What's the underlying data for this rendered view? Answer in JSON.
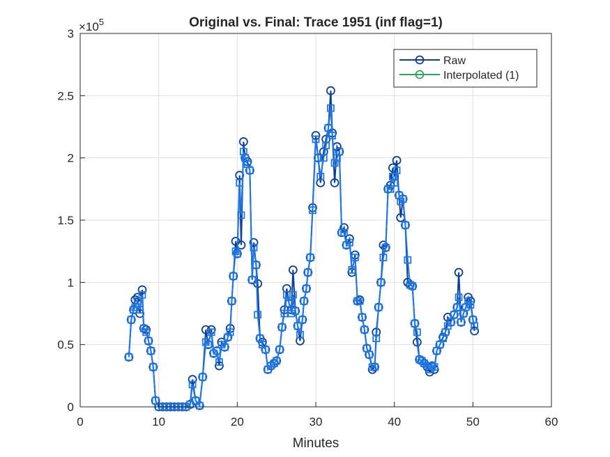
{
  "chart_data": {
    "type": "line",
    "title": "Original vs. Final: Trace 1951 (inf flag=1)",
    "x_label": "Minutes",
    "y_exponent_base": "×10",
    "y_exponent": "5",
    "xlim": [
      0,
      60
    ],
    "xticks": [
      0,
      10,
      20,
      30,
      40,
      50,
      60
    ],
    "ylim": [
      0,
      3
    ],
    "yticks": [
      0,
      0.5,
      1,
      1.5,
      2,
      2.5,
      3
    ],
    "grid": true,
    "legend": "top-right",
    "series": [
      {
        "name": "Interpolated (1)",
        "color": "#2ea55a",
        "marker": "circle",
        "x": [
          10.5,
          11,
          11.5
        ],
        "values": [
          0,
          0,
          0
        ]
      },
      {
        "name": "Raw",
        "color": "#0b3f91",
        "marker": "circle",
        "x": [
          6.2,
          6.5,
          6.8,
          7.0,
          7.3,
          7.6,
          7.9,
          8.1,
          8.4,
          8.7,
          9.0,
          9.3,
          9.6,
          10.0,
          10.5,
          11,
          11.5,
          12,
          12.5,
          13,
          13.5,
          14.0,
          14.3,
          14.7,
          15.2,
          15.6,
          16.0,
          16.3,
          16.7,
          17.0,
          17.4,
          17.7,
          18.0,
          18.4,
          18.8,
          19.1,
          19.3,
          19.5,
          19.8,
          20.0,
          20.3,
          20.5,
          20.8,
          21.0,
          21.3,
          21.6,
          21.9,
          22.1,
          22.4,
          22.6,
          22.9,
          23.2,
          23.6,
          23.9,
          24.3,
          24.7,
          25.0,
          25.4,
          25.7,
          26.0,
          26.3,
          26.6,
          26.9,
          27.1,
          27.4,
          27.7,
          28.0,
          28.3,
          28.5,
          28.8,
          29.0,
          29.3,
          29.6,
          30.0,
          30.3,
          30.6,
          31.0,
          31.3,
          31.6,
          31.9,
          32.1,
          32.4,
          32.7,
          33.0,
          33.3,
          33.6,
          33.9,
          34.3,
          34.6,
          35.0,
          35.3,
          35.6,
          35.9,
          36.2,
          36.5,
          36.8,
          37.2,
          37.5,
          37.7,
          38.0,
          38.3,
          38.6,
          38.9,
          39.2,
          39.5,
          39.8,
          40.0,
          40.3,
          40.6,
          40.8,
          41.1,
          41.4,
          41.7,
          42.0,
          42.3,
          42.6,
          42.9,
          43.2,
          43.5,
          43.8,
          44.2,
          44.5,
          44.8,
          45.1,
          45.4,
          45.8,
          46.2,
          46.5,
          46.8,
          47.2,
          47.6,
          48.0,
          48.2,
          48.5,
          48.8,
          49.1,
          49.4,
          49.7,
          50.0,
          50.2
        ],
        "values": [
          0.4,
          0.7,
          0.78,
          0.86,
          0.88,
          0.75,
          0.94,
          0.63,
          0.62,
          0.53,
          0.45,
          0.32,
          0.05,
          0,
          0,
          0,
          0,
          0,
          0,
          0,
          0,
          0.02,
          0.22,
          0.05,
          0.01,
          0.24,
          0.62,
          0.5,
          0.62,
          0.43,
          0.45,
          0.33,
          0.52,
          0.48,
          0.56,
          0.63,
          0.85,
          1.05,
          1.33,
          1.23,
          1.86,
          1.3,
          2.13,
          2.0,
          1.97,
          1.9,
          1.02,
          1.32,
          1.14,
          0.99,
          0.55,
          0.52,
          0.46,
          0.3,
          0.33,
          0.35,
          0.37,
          0.46,
          0.64,
          0.78,
          0.95,
          0.83,
          0.78,
          1.1,
          0.77,
          0.65,
          0.53,
          0.7,
          0.85,
          0.95,
          1.08,
          1.2,
          1.6,
          2.18,
          2.0,
          1.8,
          2.05,
          2.15,
          2.24,
          2.54,
          2.2,
          1.8,
          2.09,
          2.05,
          1.4,
          1.44,
          1.3,
          1.35,
          1.08,
          1.22,
          0.85,
          0.86,
          0.72,
          0.62,
          0.47,
          0.42,
          0.3,
          0.32,
          0.6,
          0.8,
          1.0,
          1.3,
          1.28,
          1.75,
          1.78,
          1.92,
          1.85,
          1.98,
          1.7,
          1.52,
          1.67,
          1.46,
          1.0,
          0.98,
          0.97,
          0.67,
          0.52,
          0.38,
          0.37,
          0.35,
          0.32,
          0.28,
          0.33,
          0.3,
          0.45,
          0.5,
          0.56,
          0.6,
          0.72,
          0.68,
          0.74,
          0.8,
          1.08,
          0.68,
          0.75,
          0.8,
          0.88,
          0.85,
          0.7,
          0.61
        ]
      },
      {
        "color": "#1f78e6",
        "marker": "square",
        "x": [
          6.2,
          6.5,
          6.8,
          7.0,
          7.3,
          7.6,
          7.9,
          8.1,
          8.4,
          8.7,
          9.0,
          9.3,
          9.6,
          10.0,
          10.5,
          11,
          11.5,
          12,
          12.5,
          13,
          13.5,
          14.0,
          14.3,
          14.7,
          15.2,
          15.6,
          16.0,
          16.3,
          16.7,
          17.0,
          17.4,
          17.7,
          18.0,
          18.4,
          18.8,
          19.1,
          19.3,
          19.5,
          19.8,
          20.0,
          20.3,
          20.5,
          20.8,
          21.0,
          21.3,
          21.6,
          21.9,
          22.1,
          22.4,
          22.6,
          22.9,
          23.2,
          23.6,
          23.9,
          24.3,
          24.7,
          25.0,
          25.4,
          25.7,
          26.0,
          26.3,
          26.6,
          26.9,
          27.1,
          27.4,
          27.7,
          28.0,
          28.3,
          28.5,
          28.8,
          29.0,
          29.3,
          29.6,
          30.0,
          30.3,
          30.6,
          31.0,
          31.3,
          31.6,
          31.9,
          32.1,
          32.4,
          32.7,
          33.0,
          33.3,
          33.6,
          33.9,
          34.3,
          34.6,
          35.0,
          35.3,
          35.6,
          35.9,
          36.2,
          36.5,
          36.8,
          37.2,
          37.5,
          37.7,
          38.0,
          38.3,
          38.6,
          38.9,
          39.2,
          39.5,
          39.8,
          40.0,
          40.3,
          40.6,
          40.8,
          41.1,
          41.4,
          41.7,
          42.0,
          42.3,
          42.6,
          42.9,
          43.2,
          43.5,
          43.8,
          44.2,
          44.5,
          44.8,
          45.1,
          45.4,
          45.8,
          46.2,
          46.5,
          46.8,
          47.2,
          47.6,
          48.0,
          48.2,
          48.5,
          48.8,
          49.1,
          49.4,
          49.7,
          50.0,
          50.2
        ],
        "values": [
          0.4,
          0.7,
          0.78,
          0.8,
          0.85,
          0.78,
          0.9,
          0.63,
          0.6,
          0.53,
          0.45,
          0.32,
          0.05,
          0,
          0,
          0,
          0,
          0,
          0,
          0,
          0,
          0.02,
          0.18,
          0.05,
          0.01,
          0.24,
          0.52,
          0.5,
          0.6,
          0.43,
          0.45,
          0.36,
          0.5,
          0.48,
          0.56,
          0.6,
          0.85,
          1.05,
          1.25,
          1.23,
          1.8,
          1.54,
          2.05,
          2.0,
          1.95,
          1.9,
          1.02,
          1.28,
          1.14,
          0.74,
          0.55,
          0.5,
          0.46,
          0.3,
          0.33,
          0.35,
          0.37,
          0.46,
          0.64,
          0.75,
          0.9,
          0.83,
          0.75,
          0.9,
          0.77,
          0.65,
          0.58,
          0.7,
          0.85,
          0.95,
          1.08,
          1.2,
          1.58,
          2.15,
          2.0,
          1.85,
          2.0,
          2.1,
          2.24,
          2.4,
          2.18,
          1.96,
          2.0,
          2.05,
          1.4,
          1.4,
          1.3,
          1.32,
          1.1,
          1.2,
          0.85,
          0.85,
          0.72,
          0.62,
          0.47,
          0.42,
          0.32,
          0.32,
          0.55,
          0.8,
          1.0,
          1.2,
          1.28,
          1.75,
          1.75,
          1.85,
          1.8,
          1.9,
          1.7,
          1.65,
          1.67,
          1.46,
          1.18,
          0.98,
          0.97,
          0.67,
          0.6,
          0.38,
          0.37,
          0.35,
          0.33,
          0.3,
          0.33,
          0.32,
          0.45,
          0.5,
          0.55,
          0.6,
          0.65,
          0.68,
          0.74,
          0.8,
          0.88,
          0.68,
          0.75,
          0.8,
          0.85,
          0.82,
          0.7,
          0.65
        ]
      }
    ]
  }
}
